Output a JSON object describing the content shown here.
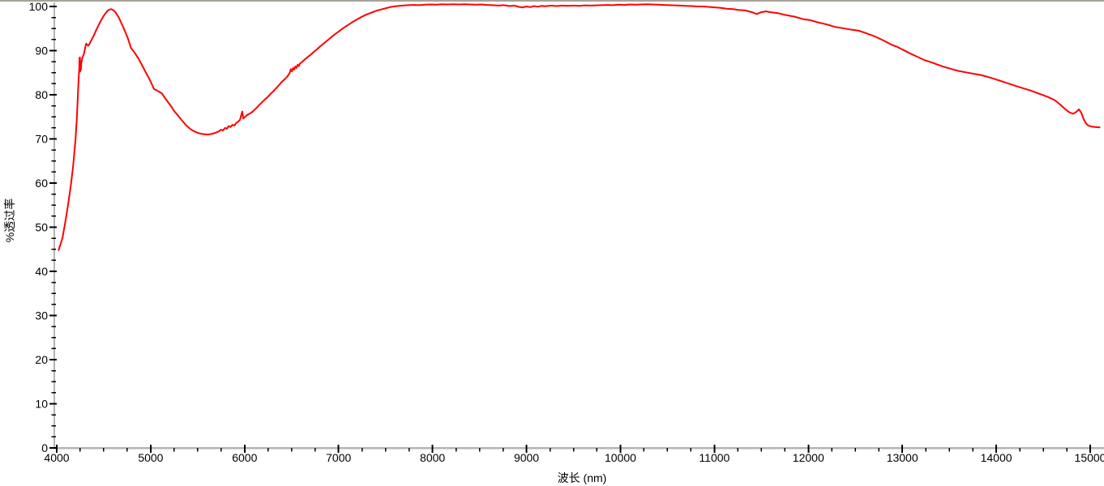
{
  "window": {
    "top_border_color": "#a7a49b",
    "background_color": "#ffffff"
  },
  "chart_data": {
    "type": "line",
    "title": "",
    "xlabel": "波长 (nm)",
    "ylabel": "%透过率",
    "xlim": [
      4000,
      15150
    ],
    "ylim": [
      0,
      100
    ],
    "x_ticks_major": [
      4000,
      5000,
      6000,
      7000,
      8000,
      9000,
      10000,
      11000,
      12000,
      13000,
      14000,
      15000
    ],
    "x_minor_step": 250,
    "y_ticks_major": [
      0,
      10,
      20,
      30,
      40,
      50,
      60,
      70,
      80,
      90,
      100
    ],
    "y_minor_step": 2.5,
    "grid": false,
    "legend": "none",
    "axis_color": "#b4b4b4",
    "tick_color": "#000000",
    "label_color": "#000000",
    "line_color": "#ff0000",
    "series": [
      {
        "name": "transmittance-spectrum",
        "points": [
          [
            4020,
            44.8
          ],
          [
            4060,
            47.5
          ],
          [
            4090,
            51.0
          ],
          [
            4120,
            55.0
          ],
          [
            4150,
            59.5
          ],
          [
            4175,
            64.0
          ],
          [
            4200,
            70.0
          ],
          [
            4215,
            75.0
          ],
          [
            4225,
            80.0
          ],
          [
            4233,
            83.5
          ],
          [
            4240,
            86.0
          ],
          [
            4242,
            88.3
          ],
          [
            4244,
            85.2
          ],
          [
            4247,
            88.5
          ],
          [
            4250,
            85.3
          ],
          [
            4253,
            87.6
          ],
          [
            4256,
            85.6
          ],
          [
            4262,
            87.2
          ],
          [
            4270,
            88.2
          ],
          [
            4280,
            88.8
          ],
          [
            4290,
            89.3
          ],
          [
            4300,
            90.4
          ],
          [
            4308,
            91.2
          ],
          [
            4315,
            91.6
          ],
          [
            4325,
            91.3
          ],
          [
            4335,
            91.1
          ],
          [
            4345,
            91.4
          ],
          [
            4360,
            92.0
          ],
          [
            4380,
            92.8
          ],
          [
            4400,
            93.7
          ],
          [
            4425,
            94.9
          ],
          [
            4450,
            96.0
          ],
          [
            4475,
            97.0
          ],
          [
            4500,
            97.9
          ],
          [
            4520,
            98.5
          ],
          [
            4540,
            99.0
          ],
          [
            4560,
            99.3
          ],
          [
            4580,
            99.4
          ],
          [
            4600,
            99.2
          ],
          [
            4620,
            98.8
          ],
          [
            4640,
            98.2
          ],
          [
            4660,
            97.5
          ],
          [
            4680,
            96.6
          ],
          [
            4700,
            95.7
          ],
          [
            4730,
            94.2
          ],
          [
            4760,
            92.6
          ],
          [
            4790,
            90.6
          ],
          [
            4830,
            89.5
          ],
          [
            4870,
            88.2
          ],
          [
            4910,
            86.6
          ],
          [
            4950,
            85.0
          ],
          [
            4990,
            83.4
          ],
          [
            5035,
            81.3
          ],
          [
            5080,
            80.8
          ],
          [
            5120,
            80.3
          ],
          [
            5160,
            79.0
          ],
          [
            5210,
            77.6
          ],
          [
            5250,
            76.3
          ],
          [
            5295,
            75.2
          ],
          [
            5340,
            74.0
          ],
          [
            5380,
            73.0
          ],
          [
            5425,
            72.2
          ],
          [
            5465,
            71.7
          ],
          [
            5510,
            71.3
          ],
          [
            5555,
            71.1
          ],
          [
            5600,
            71.0
          ],
          [
            5640,
            71.1
          ],
          [
            5680,
            71.3
          ],
          [
            5725,
            71.7
          ],
          [
            5750,
            72.1
          ],
          [
            5770,
            71.9
          ],
          [
            5790,
            72.5
          ],
          [
            5810,
            72.3
          ],
          [
            5830,
            72.9
          ],
          [
            5850,
            72.7
          ],
          [
            5870,
            73.2
          ],
          [
            5890,
            73.0
          ],
          [
            5910,
            73.6
          ],
          [
            5930,
            73.9
          ],
          [
            5950,
            74.3
          ],
          [
            5975,
            76.2
          ],
          [
            5985,
            74.6
          ],
          [
            6000,
            74.9
          ],
          [
            6020,
            75.3
          ],
          [
            6040,
            75.6
          ],
          [
            6070,
            75.9
          ],
          [
            6100,
            76.5
          ],
          [
            6130,
            77.1
          ],
          [
            6160,
            77.8
          ],
          [
            6190,
            78.4
          ],
          [
            6220,
            79.0
          ],
          [
            6250,
            79.6
          ],
          [
            6280,
            80.3
          ],
          [
            6310,
            80.9
          ],
          [
            6340,
            81.6
          ],
          [
            6370,
            82.3
          ],
          [
            6400,
            83.0
          ],
          [
            6420,
            83.4
          ],
          [
            6440,
            83.8
          ],
          [
            6460,
            84.3
          ],
          [
            6480,
            85.0
          ],
          [
            6492,
            85.8
          ],
          [
            6504,
            85.3
          ],
          [
            6516,
            86.1
          ],
          [
            6528,
            85.7
          ],
          [
            6540,
            86.4
          ],
          [
            6552,
            86.1
          ],
          [
            6564,
            86.8
          ],
          [
            6576,
            86.5
          ],
          [
            6590,
            87.1
          ],
          [
            6610,
            87.4
          ],
          [
            6630,
            87.8
          ],
          [
            6650,
            88.2
          ],
          [
            6680,
            88.7
          ],
          [
            6710,
            89.2
          ],
          [
            6740,
            89.8
          ],
          [
            6770,
            90.3
          ],
          [
            6800,
            90.9
          ],
          [
            6840,
            91.6
          ],
          [
            6880,
            92.3
          ],
          [
            6920,
            93.0
          ],
          [
            6960,
            93.7
          ],
          [
            7000,
            94.3
          ],
          [
            7050,
            95.1
          ],
          [
            7100,
            95.8
          ],
          [
            7150,
            96.5
          ],
          [
            7200,
            97.1
          ],
          [
            7250,
            97.7
          ],
          [
            7300,
            98.2
          ],
          [
            7350,
            98.6
          ],
          [
            7400,
            99.0
          ],
          [
            7450,
            99.3
          ],
          [
            7500,
            99.6
          ],
          [
            7560,
            99.9
          ],
          [
            7620,
            100.1
          ],
          [
            7680,
            100.2
          ],
          [
            7740,
            100.3
          ],
          [
            7800,
            100.35
          ],
          [
            7860,
            100.3
          ],
          [
            7920,
            100.4
          ],
          [
            7980,
            100.45
          ],
          [
            8040,
            100.4
          ],
          [
            8100,
            100.5
          ],
          [
            8160,
            100.45
          ],
          [
            8220,
            100.5
          ],
          [
            8280,
            100.45
          ],
          [
            8340,
            100.5
          ],
          [
            8400,
            100.45
          ],
          [
            8460,
            100.4
          ],
          [
            8520,
            100.45
          ],
          [
            8580,
            100.35
          ],
          [
            8640,
            100.3
          ],
          [
            8700,
            100.2
          ],
          [
            8760,
            100.3
          ],
          [
            8820,
            100.1
          ],
          [
            8870,
            100.2
          ],
          [
            8920,
            99.9
          ],
          [
            8960,
            99.8
          ],
          [
            9000,
            100.0
          ],
          [
            9040,
            99.85
          ],
          [
            9080,
            100.1
          ],
          [
            9120,
            99.95
          ],
          [
            9160,
            100.15
          ],
          [
            9200,
            100.05
          ],
          [
            9260,
            100.2
          ],
          [
            9320,
            100.1
          ],
          [
            9380,
            100.2
          ],
          [
            9440,
            100.15
          ],
          [
            9500,
            100.2
          ],
          [
            9560,
            100.15
          ],
          [
            9620,
            100.25
          ],
          [
            9680,
            100.2
          ],
          [
            9740,
            100.25
          ],
          [
            9800,
            100.3
          ],
          [
            9860,
            100.35
          ],
          [
            9920,
            100.3
          ],
          [
            9980,
            100.4
          ],
          [
            10040,
            100.35
          ],
          [
            10100,
            100.45
          ],
          [
            10160,
            100.4
          ],
          [
            10220,
            100.45
          ],
          [
            10280,
            100.5
          ],
          [
            10340,
            100.45
          ],
          [
            10400,
            100.4
          ],
          [
            10460,
            100.35
          ],
          [
            10520,
            100.3
          ],
          [
            10580,
            100.25
          ],
          [
            10640,
            100.2
          ],
          [
            10700,
            100.15
          ],
          [
            10760,
            100.1
          ],
          [
            10820,
            100.0
          ],
          [
            10880,
            100.0
          ],
          [
            10940,
            99.9
          ],
          [
            11000,
            99.8
          ],
          [
            11060,
            99.7
          ],
          [
            11130,
            99.5
          ],
          [
            11200,
            99.4
          ],
          [
            11260,
            99.2
          ],
          [
            11330,
            99.1
          ],
          [
            11400,
            98.7
          ],
          [
            11450,
            98.3
          ],
          [
            11500,
            98.7
          ],
          [
            11545,
            98.9
          ],
          [
            11600,
            98.7
          ],
          [
            11675,
            98.5
          ],
          [
            11750,
            98.1
          ],
          [
            11850,
            97.7
          ],
          [
            11950,
            97.1
          ],
          [
            12020,
            96.9
          ],
          [
            12100,
            96.4
          ],
          [
            12200,
            95.9
          ],
          [
            12280,
            95.4
          ],
          [
            12360,
            95.1
          ],
          [
            12440,
            94.8
          ],
          [
            12540,
            94.5
          ],
          [
            12620,
            93.9
          ],
          [
            12710,
            93.2
          ],
          [
            12800,
            92.3
          ],
          [
            12880,
            91.4
          ],
          [
            12950,
            90.8
          ],
          [
            13070,
            89.5
          ],
          [
            13150,
            88.7
          ],
          [
            13230,
            87.9
          ],
          [
            13330,
            87.2
          ],
          [
            13430,
            86.4
          ],
          [
            13530,
            85.8
          ],
          [
            13600,
            85.4
          ],
          [
            13700,
            85.0
          ],
          [
            13800,
            84.6
          ],
          [
            13850,
            84.4
          ],
          [
            13950,
            83.8
          ],
          [
            14050,
            83.1
          ],
          [
            14150,
            82.4
          ],
          [
            14250,
            81.7
          ],
          [
            14360,
            81.0
          ],
          [
            14450,
            80.3
          ],
          [
            14550,
            79.5
          ],
          [
            14620,
            78.8
          ],
          [
            14680,
            77.8
          ],
          [
            14730,
            76.8
          ],
          [
            14780,
            76.0
          ],
          [
            14820,
            75.7
          ],
          [
            14850,
            76.1
          ],
          [
            14880,
            76.7
          ],
          [
            14905,
            75.9
          ],
          [
            14930,
            74.5
          ],
          [
            14955,
            73.5
          ],
          [
            14980,
            73.0
          ],
          [
            15010,
            72.8
          ],
          [
            15050,
            72.7
          ],
          [
            15100,
            72.6
          ]
        ]
      }
    ]
  }
}
